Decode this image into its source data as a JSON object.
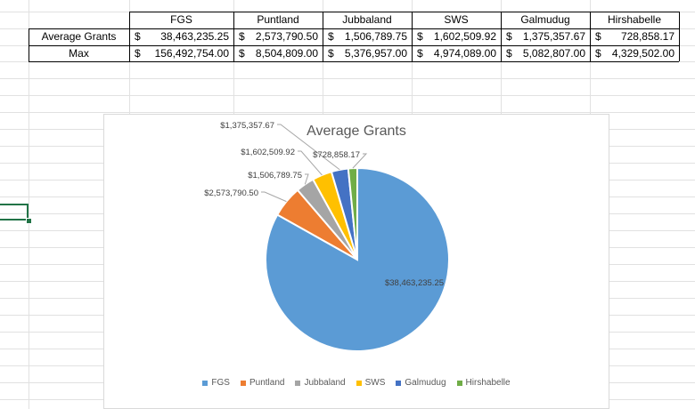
{
  "table": {
    "headers": [
      "FGS",
      "Puntland",
      "Jubbaland",
      "SWS",
      "Galmudug",
      "Hirshabelle"
    ],
    "rows": [
      {
        "label": "Average Grants",
        "currency": "$",
        "values": [
          "38,463,235.25",
          "2,573,790.50",
          "1,506,789.75",
          "1,602,509.92",
          "1,375,357.67",
          "728,858.17"
        ]
      },
      {
        "label": "Max",
        "currency": "$",
        "values": [
          "156,492,754.00",
          "8,504,809.00",
          "5,376,957.00",
          "4,974,089.00",
          "5,082,807.00",
          "4,329,502.00"
        ]
      }
    ]
  },
  "chart_data": {
    "type": "pie",
    "title": "Average Grants",
    "categories": [
      "FGS",
      "Puntland",
      "Jubbaland",
      "SWS",
      "Galmudug",
      "Hirshabelle"
    ],
    "values": [
      38463235.25,
      2573790.5,
      1506789.75,
      1602509.92,
      1375357.67,
      728858.17
    ],
    "data_labels": [
      "$38,463,235.25",
      "$2,573,790.50",
      "$1,506,789.75",
      "$1,602,509.92",
      "$1,375,357.67",
      "$728,858.17"
    ],
    "colors": [
      "#5b9bd5",
      "#ed7d31",
      "#a5a5a5",
      "#ffc000",
      "#4472c4",
      "#70ad47"
    ],
    "legend": "bottom"
  }
}
